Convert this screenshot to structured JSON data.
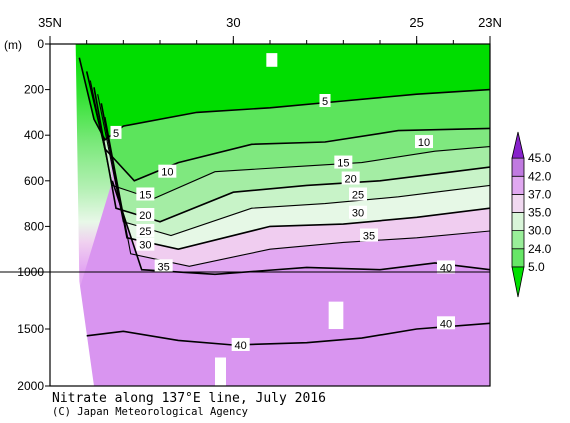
{
  "chart_data": {
    "type": "heatmap",
    "title": "Nitrate along 137°E line, July 2016",
    "credit": "(C) Japan Meteorological Agency",
    "y_unit": "(m)",
    "x_axis": {
      "range": [
        35,
        23
      ],
      "direction": "north-to-south",
      "tick_labels": [
        {
          "lat": 35,
          "label": "35N"
        },
        {
          "lat": 30,
          "label": "30"
        },
        {
          "lat": 25,
          "label": "25"
        },
        {
          "lat": 23,
          "label": "23N"
        }
      ]
    },
    "y_axis": {
      "segments": [
        {
          "depth_range": [
            0,
            1000
          ],
          "ticks": [
            0,
            200,
            400,
            600,
            800,
            1000
          ]
        },
        {
          "depth_range": [
            1000,
            2000
          ],
          "ticks": [
            1500,
            2000
          ]
        }
      ],
      "tick_labels": [
        "0",
        "200",
        "400",
        "600",
        "800",
        "1000",
        "1500",
        "2000"
      ],
      "inverted": true,
      "reference_line_depth": 1000
    },
    "colorbar": {
      "levels": [
        5.0,
        24.0,
        30.0,
        35.0,
        37.0,
        42.0,
        45.0
      ],
      "labels": [
        "5.0",
        "24.0",
        "30.0",
        "35.0",
        "37.0",
        "42.0",
        "45.0"
      ],
      "colors": [
        "#00e000",
        "#66e666",
        "#99ee99",
        "#d9f5d9",
        "#f0d8f0",
        "#e0a8f0",
        "#c07ae0",
        "#8822cc"
      ]
    },
    "contour_levels": [
      5,
      10,
      15,
      20,
      25,
      30,
      35,
      40
    ],
    "contours": [
      {
        "level": 5,
        "label": "5",
        "points": [
          [
            34.2,
            60
          ],
          [
            33.8,
            330
          ],
          [
            33.5,
            420
          ],
          [
            33.0,
            360
          ],
          [
            31.0,
            300
          ],
          [
            29.0,
            280
          ],
          [
            27.0,
            250
          ],
          [
            25.0,
            220
          ],
          [
            23.0,
            200
          ]
        ]
      },
      {
        "level": 10,
        "label": "10",
        "points": [
          [
            34.0,
            120
          ],
          [
            33.5,
            460
          ],
          [
            32.7,
            600
          ],
          [
            31.5,
            520
          ],
          [
            29.5,
            440
          ],
          [
            27.5,
            430
          ],
          [
            25.5,
            380
          ],
          [
            23.0,
            370
          ]
        ]
      },
      {
        "level": 15,
        "label": "15",
        "points": [
          [
            33.9,
            160
          ],
          [
            33.3,
            620
          ],
          [
            32.2,
            680
          ],
          [
            30.5,
            560
          ],
          [
            28.5,
            540
          ],
          [
            26.5,
            520
          ],
          [
            24.5,
            470
          ],
          [
            23.0,
            450
          ]
        ]
      },
      {
        "level": 20,
        "label": "20",
        "points": [
          [
            33.8,
            190
          ],
          [
            33.2,
            720
          ],
          [
            32.0,
            780
          ],
          [
            30.0,
            650
          ],
          [
            28.0,
            620
          ],
          [
            26.0,
            600
          ],
          [
            24.0,
            560
          ],
          [
            23.0,
            540
          ]
        ]
      },
      {
        "level": 25,
        "label": "25",
        "points": [
          [
            33.7,
            220
          ],
          [
            33.0,
            780
          ],
          [
            31.7,
            840
          ],
          [
            29.5,
            720
          ],
          [
            27.5,
            700
          ],
          [
            25.5,
            670
          ],
          [
            24.0,
            640
          ],
          [
            23.0,
            620
          ]
        ]
      },
      {
        "level": 30,
        "label": "30",
        "points": [
          [
            33.6,
            260
          ],
          [
            32.9,
            850
          ],
          [
            31.5,
            900
          ],
          [
            29.0,
            800
          ],
          [
            27.0,
            790
          ],
          [
            25.0,
            760
          ],
          [
            23.0,
            720
          ]
        ]
      },
      {
        "level": 35,
        "label": "35",
        "points": [
          [
            33.5,
            320
          ],
          [
            32.8,
            920
          ],
          [
            31.2,
            975
          ],
          [
            29.0,
            900
          ],
          [
            27.0,
            870
          ],
          [
            25.0,
            850
          ],
          [
            23.0,
            820
          ]
        ]
      },
      {
        "level": 40,
        "label": "40",
        "points": [
          [
            33.3,
            600
          ],
          [
            32.5,
            990
          ],
          [
            30.5,
            1020
          ],
          [
            28.0,
            980
          ],
          [
            26.0,
            990
          ],
          [
            24.5,
            960
          ],
          [
            23.0,
            990
          ]
        ]
      },
      {
        "level": 40,
        "label": "40",
        "points": [
          [
            34.0,
            1560
          ],
          [
            33.0,
            1520
          ],
          [
            31.5,
            1600
          ],
          [
            30.0,
            1640
          ],
          [
            28.0,
            1620
          ],
          [
            26.5,
            1580
          ],
          [
            25.0,
            1500
          ],
          [
            23.0,
            1450
          ]
        ]
      }
    ],
    "contour_labels": [
      {
        "text": "5",
        "lat": 33.2,
        "depth": 390
      },
      {
        "text": "5",
        "lat": 27.5,
        "depth": 250
      },
      {
        "text": "10",
        "lat": 31.8,
        "depth": 560
      },
      {
        "text": "10",
        "lat": 24.8,
        "depth": 430
      },
      {
        "text": "15",
        "lat": 32.4,
        "depth": 660
      },
      {
        "text": "15",
        "lat": 27.0,
        "depth": 520
      },
      {
        "text": "20",
        "lat": 32.4,
        "depth": 750
      },
      {
        "text": "20",
        "lat": 26.8,
        "depth": 590
      },
      {
        "text": "25",
        "lat": 32.4,
        "depth": 820
      },
      {
        "text": "25",
        "lat": 26.6,
        "depth": 660
      },
      {
        "text": "30",
        "lat": 32.4,
        "depth": 880
      },
      {
        "text": "30",
        "lat": 26.6,
        "depth": 740
      },
      {
        "text": "35",
        "lat": 31.9,
        "depth": 975
      },
      {
        "text": "35",
        "lat": 26.3,
        "depth": 840
      },
      {
        "text": "40",
        "lat": 24.2,
        "depth": 980
      },
      {
        "text": "40",
        "lat": 24.2,
        "depth": 1450
      },
      {
        "text": "40",
        "lat": 29.8,
        "depth": 1640
      }
    ],
    "missing_data_regions": [
      {
        "lat": [
          29.1,
          28.8
        ],
        "depth": [
          40,
          100
        ]
      },
      {
        "lat": [
          27.4,
          27.0
        ],
        "depth": [
          1260,
          1500
        ]
      },
      {
        "lat": [
          30.5,
          30.2
        ],
        "depth": [
          1750,
          2000
        ]
      }
    ]
  }
}
